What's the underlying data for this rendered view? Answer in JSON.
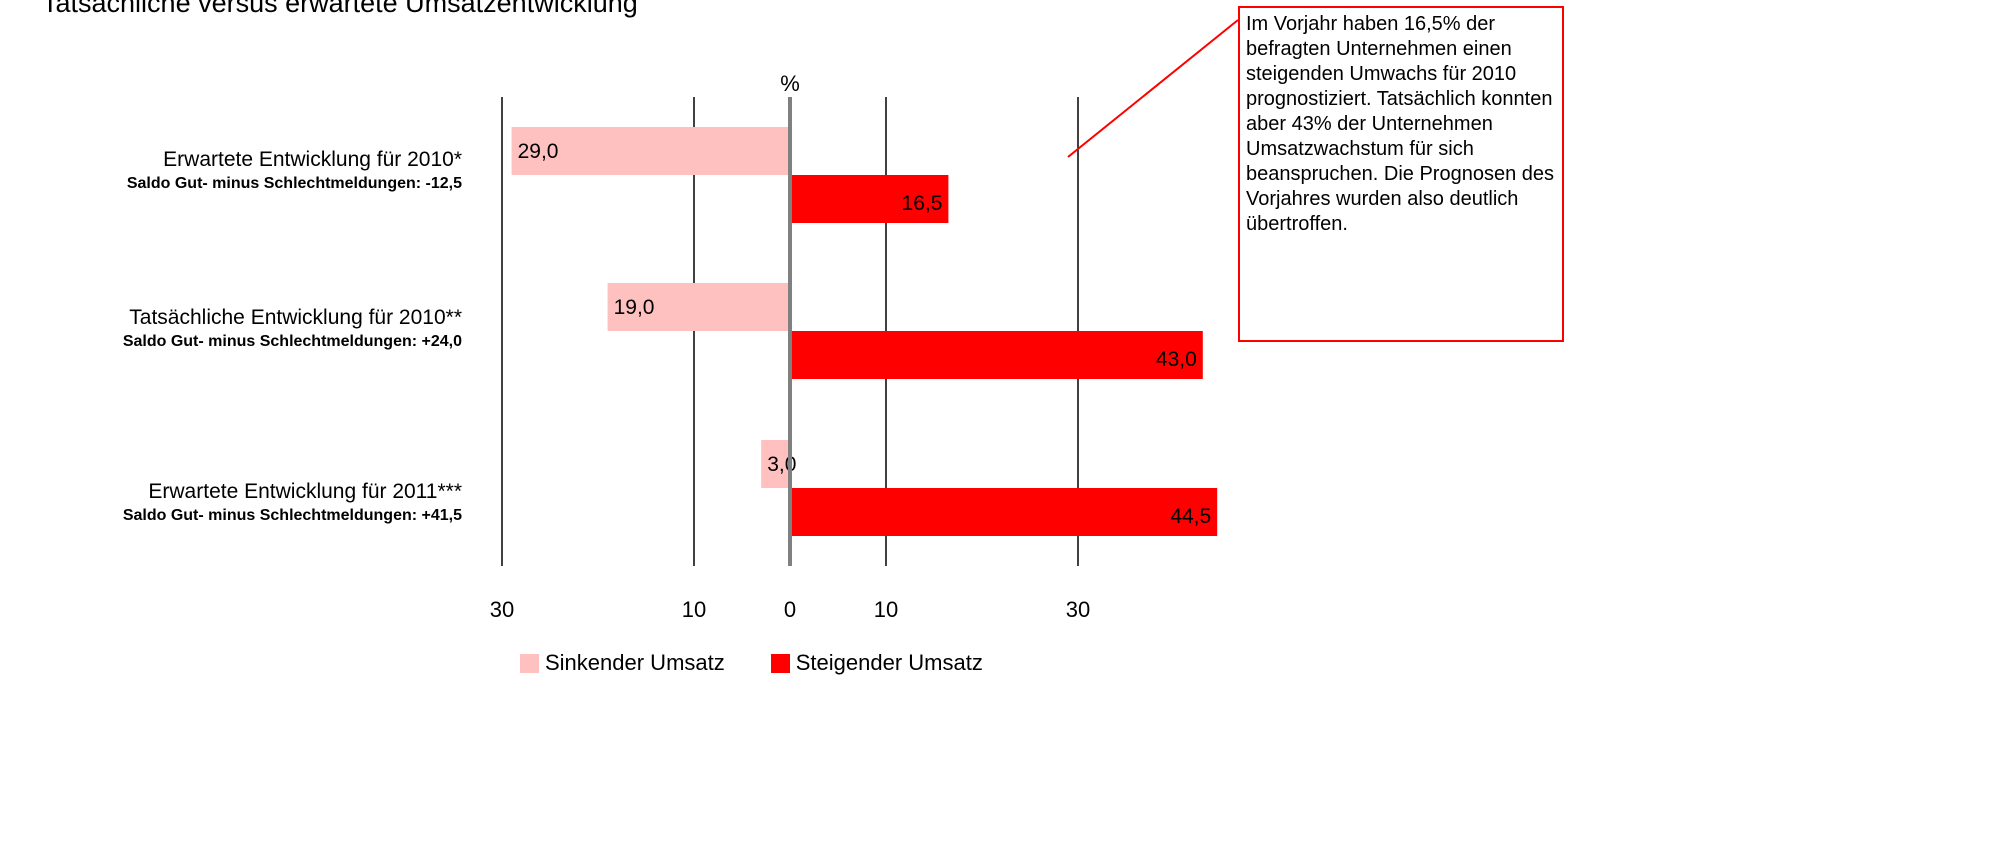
{
  "title": "Tatsächliche versus erwartete Umsatzentwicklung",
  "callout": {
    "text": "Im Vorjahr haben 16,5% der befragten Unternehmen einen steigenden Umwachs für 2010 prognostiziert. Tatsächlich konnten aber 43% der Unternehmen Umsatzwachstum für sich beanspruchen. Die Prognosen des Vorjahres wurden also deutlich übertroffen."
  },
  "rows": [
    {
      "label": "Erwartete Entwicklung für 2010*",
      "saldo": "Saldo Gut- minus Schlechtmeldungen: -12,5"
    },
    {
      "label": "Tatsächliche Entwicklung für 2010**",
      "saldo": "Saldo Gut- minus Schlechtmeldungen: +24,0"
    },
    {
      "label": "Erwartete Entwicklung für 2011***",
      "saldo": "Saldo Gut- minus Schlechtmeldungen: +41,5"
    }
  ],
  "legend": {
    "sinkend": "Sinkender Umsatz",
    "steigend": "Steigender Umsatz"
  },
  "colors": {
    "sinkend": "#ffc0c0",
    "steigend": "#ff0000",
    "zero_axis": "#808080",
    "callout_border": "#ff0000"
  },
  "chart_data": {
    "type": "bar",
    "orientation": "horizontal-diverging",
    "unit_label": "%",
    "categories": [
      "Erwartete Entwicklung für 2010*",
      "Tatsächliche Entwicklung für 2010**",
      "Erwartete Entwicklung für 2011***"
    ],
    "series": [
      {
        "name": "Sinkender Umsatz",
        "values": [
          29.0,
          19.0,
          3.0
        ],
        "labels": [
          "29,0",
          "19,0",
          "3,0"
        ],
        "direction": "left"
      },
      {
        "name": "Steigender Umsatz",
        "values": [
          16.5,
          43.0,
          44.5
        ],
        "labels": [
          "16,5",
          "43,0",
          "44,5"
        ],
        "direction": "right"
      }
    ],
    "xlim": [
      -30,
      45
    ],
    "ticks": [
      {
        "value": -30,
        "label": "30"
      },
      {
        "value": -10,
        "label": "10"
      },
      {
        "value": 0,
        "label": "0"
      },
      {
        "value": 10,
        "label": "10"
      },
      {
        "value": 30,
        "label": "30"
      }
    ],
    "gridlines": true,
    "legend_position": "bottom"
  }
}
